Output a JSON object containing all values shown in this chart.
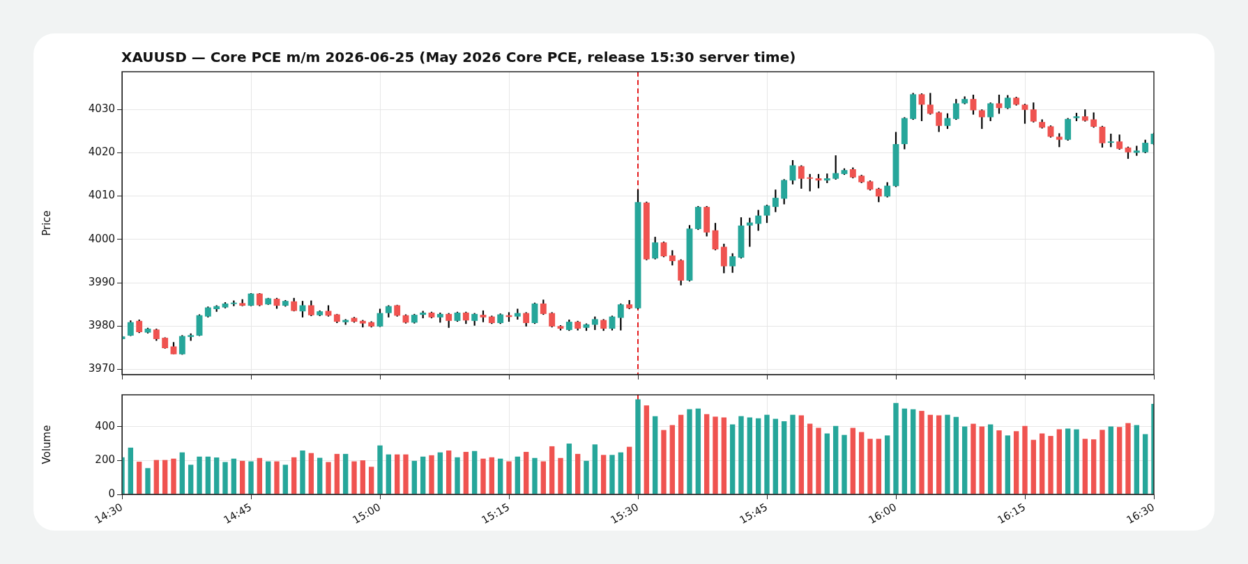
{
  "chart_data": [
    {
      "type": "candlestick",
      "title": "XAUUSD — Core PCE m/m 2026-06-25 (May 2026 Core PCE, release 15:30 server time)",
      "ylabel": "Price",
      "categories": [
        "14:30",
        null,
        null,
        null,
        null,
        null,
        null,
        null,
        null,
        null,
        null,
        null,
        null,
        null,
        null,
        "14:45",
        null,
        null,
        null,
        null,
        null,
        null,
        null,
        null,
        null,
        null,
        null,
        null,
        null,
        null,
        "15:00",
        null,
        null,
        null,
        null,
        null,
        null,
        null,
        null,
        null,
        null,
        null,
        null,
        null,
        null,
        "15:15",
        null,
        null,
        null,
        null,
        null,
        null,
        null,
        null,
        null,
        null,
        null,
        null,
        null,
        null,
        "15:30",
        null,
        null,
        null,
        null,
        null,
        null,
        null,
        null,
        null,
        null,
        null,
        null,
        null,
        null,
        "15:45",
        null,
        null,
        null,
        null,
        null,
        null,
        null,
        null,
        null,
        null,
        null,
        null,
        null,
        null,
        "16:00",
        null,
        null,
        null,
        null,
        null,
        null,
        null,
        null,
        null,
        null,
        null,
        null,
        null,
        null,
        "16:15",
        null,
        null,
        null,
        null,
        null,
        null,
        null,
        null,
        null,
        null,
        null,
        null,
        null,
        null,
        "16:30"
      ],
      "ohlc": [
        [
          3977.0,
          3977.8,
          3976.9,
          3977.6
        ],
        [
          3977.8,
          3981.3,
          3977.7,
          3980.9
        ],
        [
          3981.2,
          3981.5,
          3978.4,
          3978.6
        ],
        [
          3978.5,
          3979.6,
          3978.3,
          3979.4
        ],
        [
          3979.2,
          3979.4,
          3976.6,
          3977.0
        ],
        [
          3977.3,
          3977.4,
          3974.8,
          3974.9
        ],
        [
          3975.3,
          3976.3,
          3973.5,
          3973.5
        ],
        [
          3973.5,
          3977.9,
          3973.4,
          3977.7
        ],
        [
          3977.5,
          3978.3,
          3976.6,
          3977.9
        ],
        [
          3977.8,
          3982.7,
          3977.7,
          3982.5
        ],
        [
          3982.2,
          3984.5,
          3982.0,
          3984.3
        ],
        [
          3983.9,
          3984.8,
          3983.3,
          3984.6
        ],
        [
          3984.3,
          3985.5,
          3984.1,
          3985.2
        ],
        [
          3985.1,
          3985.9,
          3984.6,
          3985.4
        ],
        [
          3985.3,
          3986.2,
          3984.6,
          3984.7
        ],
        [
          3984.7,
          3987.6,
          3984.6,
          3987.5
        ],
        [
          3987.5,
          3987.6,
          3984.6,
          3984.8
        ],
        [
          3985.0,
          3986.5,
          3984.9,
          3986.4
        ],
        [
          3986.3,
          3986.5,
          3984.0,
          3984.7
        ],
        [
          3984.7,
          3986.0,
          3984.5,
          3985.8
        ],
        [
          3985.7,
          3986.5,
          3983.4,
          3983.5
        ],
        [
          3983.4,
          3985.8,
          3982.0,
          3984.8
        ],
        [
          3984.8,
          3985.9,
          3982.3,
          3982.5
        ],
        [
          3982.5,
          3983.6,
          3982.3,
          3983.4
        ],
        [
          3983.5,
          3984.8,
          3982.2,
          3982.4
        ],
        [
          3982.7,
          3982.8,
          3980.7,
          3981.0
        ],
        [
          3980.9,
          3981.6,
          3980.3,
          3981.4
        ],
        [
          3981.9,
          3982.1,
          3980.8,
          3981.0
        ],
        [
          3981.2,
          3981.4,
          3979.7,
          3980.6
        ],
        [
          3980.9,
          3981.1,
          3979.7,
          3979.9
        ],
        [
          3979.9,
          3984.0,
          3979.8,
          3983.0
        ],
        [
          3983.0,
          3984.8,
          3982.0,
          3984.6
        ],
        [
          3984.8,
          3984.9,
          3982.2,
          3982.4
        ],
        [
          3982.5,
          3982.7,
          3980.6,
          3980.8
        ],
        [
          3980.8,
          3982.8,
          3980.6,
          3982.6
        ],
        [
          3982.6,
          3983.5,
          3981.8,
          3983.1
        ],
        [
          3983.1,
          3983.3,
          3981.8,
          3982.0
        ],
        [
          3982.0,
          3983.1,
          3980.8,
          3982.8
        ],
        [
          3982.8,
          3983.0,
          3979.6,
          3981.2
        ],
        [
          3981.2,
          3983.3,
          3981.0,
          3983.1
        ],
        [
          3983.1,
          3983.3,
          3980.5,
          3981.3
        ],
        [
          3981.2,
          3983.0,
          3980.1,
          3982.8
        ],
        [
          3982.6,
          3983.6,
          3980.9,
          3982.0
        ],
        [
          3982.2,
          3982.4,
          3980.5,
          3980.7
        ],
        [
          3980.7,
          3982.9,
          3980.5,
          3982.7
        ],
        [
          3982.5,
          3983.2,
          3981.0,
          3982.1
        ],
        [
          3982.2,
          3984.0,
          3981.5,
          3983.0
        ],
        [
          3983.0,
          3983.2,
          3979.9,
          3980.7
        ],
        [
          3980.7,
          3985.4,
          3980.5,
          3985.2
        ],
        [
          3985.2,
          3986.1,
          3982.6,
          3982.8
        ],
        [
          3983.0,
          3983.2,
          3979.7,
          3979.9
        ],
        [
          3980.0,
          3980.2,
          3979.0,
          3979.4
        ],
        [
          3979.1,
          3981.5,
          3978.9,
          3981.0
        ],
        [
          3981.0,
          3981.2,
          3979.0,
          3979.4
        ],
        [
          3979.6,
          3980.6,
          3978.9,
          3980.4
        ],
        [
          3980.3,
          3982.2,
          3979.1,
          3981.6
        ],
        [
          3981.4,
          3981.6,
          3978.9,
          3979.4
        ],
        [
          3979.4,
          3982.4,
          3979.0,
          3982.2
        ],
        [
          3981.9,
          3985.2,
          3979.0,
          3985.0
        ],
        [
          3985.0,
          3986.0,
          3983.9,
          3984.1
        ],
        [
          3984.1,
          4011.5,
          3983.9,
          4008.6
        ],
        [
          4008.5,
          4008.7,
          3995.2,
          3995.4
        ],
        [
          3995.6,
          4000.6,
          3995.4,
          3999.3
        ],
        [
          3999.3,
          3999.5,
          3995.9,
          3996.1
        ],
        [
          3996.3,
          3997.5,
          3994.0,
          3995.0
        ],
        [
          3995.2,
          3995.4,
          3989.4,
          3990.5
        ],
        [
          3990.5,
          4003.3,
          3990.3,
          4002.5
        ],
        [
          4002.4,
          4007.7,
          4002.2,
          4007.5
        ],
        [
          4007.5,
          4007.7,
          4000.7,
          4001.6
        ],
        [
          4002.1,
          4003.8,
          3997.5,
          3997.7
        ],
        [
          3998.3,
          3999.0,
          3992.2,
          3993.8
        ],
        [
          3993.8,
          3996.8,
          3992.3,
          3996.1
        ],
        [
          3995.8,
          4005.1,
          3995.6,
          4003.2
        ],
        [
          4003.2,
          4005.0,
          3998.3,
          4003.9
        ],
        [
          4003.6,
          4006.8,
          4002.0,
          4005.5
        ],
        [
          4005.5,
          4008.0,
          4003.8,
          4007.8
        ],
        [
          4007.5,
          4011.5,
          4006.3,
          4009.6
        ],
        [
          4009.4,
          4013.9,
          4008.1,
          4013.7
        ],
        [
          4013.6,
          4018.3,
          4012.7,
          4017.1
        ],
        [
          4016.9,
          4017.1,
          4011.7,
          4014.0
        ],
        [
          4014.3,
          4015.1,
          4011.1,
          4014.0
        ],
        [
          4014.1,
          4015.1,
          4011.8,
          4013.6
        ],
        [
          4013.6,
          4015.2,
          4013.0,
          4014.1
        ],
        [
          4014.0,
          4019.4,
          4013.8,
          4015.3
        ],
        [
          4015.1,
          4016.4,
          4014.9,
          4016.0
        ],
        [
          4016.2,
          4016.6,
          4014.1,
          4014.3
        ],
        [
          4014.7,
          4014.9,
          4013.0,
          4013.2
        ],
        [
          4013.4,
          4013.6,
          4011.3,
          4011.5
        ],
        [
          4011.7,
          4011.9,
          4008.6,
          4009.9
        ],
        [
          4009.9,
          4013.2,
          4009.7,
          4012.4
        ],
        [
          4012.3,
          4024.8,
          4012.1,
          4022.0
        ],
        [
          4022.0,
          4028.2,
          4020.8,
          4028.0
        ],
        [
          4027.8,
          4033.8,
          4027.6,
          4033.5
        ],
        [
          4033.5,
          4033.7,
          4027.3,
          4031.1
        ],
        [
          4031.1,
          4033.8,
          4028.8,
          4029.0
        ],
        [
          4029.3,
          4029.5,
          4024.8,
          4026.2
        ],
        [
          4026.2,
          4029.1,
          4025.5,
          4028.0
        ],
        [
          4027.8,
          4032.4,
          4027.6,
          4031.4
        ],
        [
          4031.4,
          4033.0,
          4031.2,
          4032.4
        ],
        [
          4032.4,
          4033.4,
          4028.8,
          4029.8
        ],
        [
          4029.8,
          4030.0,
          4025.5,
          4028.2
        ],
        [
          4028.2,
          4031.6,
          4027.3,
          4031.4
        ],
        [
          4031.4,
          4033.4,
          4029.0,
          4030.3
        ],
        [
          4030.3,
          4033.3,
          4030.1,
          4032.7
        ],
        [
          4032.7,
          4032.9,
          4030.9,
          4031.1
        ],
        [
          4031.1,
          4031.3,
          4026.7,
          4029.9
        ],
        [
          4030.0,
          4031.6,
          4027.0,
          4027.2
        ],
        [
          4027.1,
          4027.7,
          4025.6,
          4025.8
        ],
        [
          4026.1,
          4026.3,
          4023.5,
          4023.7
        ],
        [
          4023.7,
          4024.5,
          4021.3,
          4023.0
        ],
        [
          4023.0,
          4028.0,
          4022.8,
          4027.8
        ],
        [
          4028.0,
          4029.2,
          4027.3,
          4028.4
        ],
        [
          4028.4,
          4030.0,
          4027.2,
          4027.4
        ],
        [
          4027.7,
          4029.3,
          4025.8,
          4026.0
        ],
        [
          4026.0,
          4026.2,
          4021.2,
          4022.2
        ],
        [
          4022.3,
          4024.4,
          4021.3,
          4022.6
        ],
        [
          4022.6,
          4024.2,
          4020.7,
          4020.9
        ],
        [
          4021.2,
          4021.4,
          4018.6,
          4020.1
        ],
        [
          4020.0,
          4021.6,
          4019.3,
          4020.5
        ],
        [
          4020.1,
          4023.0,
          4019.9,
          4022.3
        ],
        [
          4022.0,
          4024.6,
          4021.8,
          4024.4
        ]
      ],
      "colors": [
        "#26a69a",
        "#26a69a",
        "#ef5350",
        "#26a69a",
        "#ef5350",
        "#ef5350",
        "#ef5350",
        "#26a69a",
        "#26a69a",
        "#26a69a",
        "#26a69a",
        "#26a69a",
        "#26a69a",
        "#26a69a",
        "#ef5350",
        "#26a69a",
        "#ef5350",
        "#26a69a",
        "#ef5350",
        "#26a69a",
        "#ef5350",
        "#26a69a",
        "#ef5350",
        "#26a69a",
        "#ef5350",
        "#ef5350",
        "#26a69a",
        "#ef5350",
        "#ef5350",
        "#ef5350",
        "#26a69a",
        "#26a69a",
        "#ef5350",
        "#ef5350",
        "#26a69a",
        "#26a69a",
        "#ef5350",
        "#26a69a",
        "#ef5350",
        "#26a69a",
        "#ef5350",
        "#26a69a",
        "#ef5350",
        "#ef5350",
        "#26a69a",
        "#ef5350",
        "#26a69a",
        "#ef5350",
        "#26a69a",
        "#ef5350",
        "#ef5350",
        "#ef5350",
        "#26a69a",
        "#ef5350",
        "#26a69a",
        "#26a69a",
        "#ef5350",
        "#26a69a",
        "#26a69a",
        "#ef5350",
        "#26a69a",
        "#ef5350",
        "#26a69a",
        "#ef5350",
        "#ef5350",
        "#ef5350",
        "#26a69a",
        "#26a69a",
        "#ef5350",
        "#ef5350",
        "#ef5350",
        "#26a69a",
        "#26a69a",
        "#26a69a",
        "#26a69a",
        "#26a69a",
        "#26a69a",
        "#26a69a",
        "#26a69a",
        "#ef5350",
        "#ef5350",
        "#ef5350",
        "#26a69a",
        "#26a69a",
        "#26a69a",
        "#ef5350",
        "#ef5350",
        "#ef5350",
        "#ef5350",
        "#26a69a",
        "#26a69a",
        "#26a69a",
        "#26a69a",
        "#ef5350",
        "#ef5350",
        "#ef5350",
        "#26a69a",
        "#26a69a",
        "#26a69a",
        "#ef5350",
        "#ef5350",
        "#26a69a",
        "#ef5350",
        "#26a69a",
        "#ef5350",
        "#ef5350",
        "#ef5350",
        "#ef5350",
        "#ef5350",
        "#ef5350",
        "#26a69a",
        "#26a69a",
        "#ef5350",
        "#ef5350",
        "#ef5350",
        "#26a69a",
        "#ef5350",
        "#ef5350",
        "#26a69a",
        "#26a69a",
        "#26a69a"
      ],
      "ylim": [
        3968.8,
        4038.7
      ],
      "yticks": [
        3970,
        3980,
        3990,
        4000,
        4010,
        4020,
        4030
      ],
      "tick_labels": "y",
      "grid": true,
      "legend": false,
      "ref_lines": [
        {
          "axis": "x",
          "value": "15:30",
          "color": "#e41a1c",
          "line_style": "dashed"
        }
      ]
    },
    {
      "type": "bar",
      "ylabel": "Volume",
      "categories": [
        "14:30",
        null,
        null,
        null,
        null,
        null,
        null,
        null,
        null,
        null,
        null,
        null,
        null,
        null,
        null,
        "14:45",
        null,
        null,
        null,
        null,
        null,
        null,
        null,
        null,
        null,
        null,
        null,
        null,
        null,
        null,
        "15:00",
        null,
        null,
        null,
        null,
        null,
        null,
        null,
        null,
        null,
        null,
        null,
        null,
        null,
        null,
        "15:15",
        null,
        null,
        null,
        null,
        null,
        null,
        null,
        null,
        null,
        null,
        null,
        null,
        null,
        null,
        "15:30",
        null,
        null,
        null,
        null,
        null,
        null,
        null,
        null,
        null,
        null,
        null,
        null,
        null,
        null,
        "15:45",
        null,
        null,
        null,
        null,
        null,
        null,
        null,
        null,
        null,
        null,
        null,
        null,
        null,
        null,
        "16:00",
        null,
        null,
        null,
        null,
        null,
        null,
        null,
        null,
        null,
        null,
        null,
        null,
        null,
        null,
        "16:15",
        null,
        null,
        null,
        null,
        null,
        null,
        null,
        null,
        null,
        null,
        null,
        null,
        null,
        null,
        "16:30"
      ],
      "values": [
        219,
        276,
        193,
        155,
        203,
        203,
        211,
        248,
        175,
        223,
        223,
        218,
        191,
        211,
        198,
        195,
        215,
        195,
        195,
        175,
        219,
        259,
        244,
        216,
        191,
        239,
        239,
        195,
        201,
        163,
        289,
        236,
        236,
        236,
        198,
        223,
        231,
        248,
        259,
        219,
        251,
        256,
        211,
        219,
        211,
        195,
        223,
        251,
        215,
        195,
        284,
        215,
        300,
        239,
        198,
        295,
        233,
        233,
        248,
        281,
        561,
        525,
        462,
        380,
        409,
        470,
        503,
        507,
        474,
        459,
        454,
        413,
        462,
        454,
        449,
        470,
        446,
        432,
        470,
        467,
        417,
        393,
        360,
        404,
        351,
        393,
        368,
        328,
        328,
        348,
        540,
        507,
        503,
        493,
        470,
        467,
        470,
        457,
        401,
        417,
        401,
        413,
        378,
        348,
        373,
        404,
        322,
        360,
        345,
        384,
        389,
        384,
        328,
        325,
        381,
        401,
        398,
        421,
        409,
        356,
        535
      ],
      "colors": [
        "#26a69a",
        "#26a69a",
        "#ef5350",
        "#26a69a",
        "#ef5350",
        "#ef5350",
        "#ef5350",
        "#26a69a",
        "#26a69a",
        "#26a69a",
        "#26a69a",
        "#26a69a",
        "#26a69a",
        "#26a69a",
        "#ef5350",
        "#26a69a",
        "#ef5350",
        "#26a69a",
        "#ef5350",
        "#26a69a",
        "#ef5350",
        "#26a69a",
        "#ef5350",
        "#26a69a",
        "#ef5350",
        "#ef5350",
        "#26a69a",
        "#ef5350",
        "#ef5350",
        "#ef5350",
        "#26a69a",
        "#26a69a",
        "#ef5350",
        "#ef5350",
        "#26a69a",
        "#26a69a",
        "#ef5350",
        "#26a69a",
        "#ef5350",
        "#26a69a",
        "#ef5350",
        "#26a69a",
        "#ef5350",
        "#ef5350",
        "#26a69a",
        "#ef5350",
        "#26a69a",
        "#ef5350",
        "#26a69a",
        "#ef5350",
        "#ef5350",
        "#ef5350",
        "#26a69a",
        "#ef5350",
        "#26a69a",
        "#26a69a",
        "#ef5350",
        "#26a69a",
        "#26a69a",
        "#ef5350",
        "#26a69a",
        "#ef5350",
        "#26a69a",
        "#ef5350",
        "#ef5350",
        "#ef5350",
        "#26a69a",
        "#26a69a",
        "#ef5350",
        "#ef5350",
        "#ef5350",
        "#26a69a",
        "#26a69a",
        "#26a69a",
        "#26a69a",
        "#26a69a",
        "#26a69a",
        "#26a69a",
        "#26a69a",
        "#ef5350",
        "#ef5350",
        "#ef5350",
        "#26a69a",
        "#26a69a",
        "#26a69a",
        "#ef5350",
        "#ef5350",
        "#ef5350",
        "#ef5350",
        "#26a69a",
        "#26a69a",
        "#26a69a",
        "#26a69a",
        "#ef5350",
        "#ef5350",
        "#ef5350",
        "#26a69a",
        "#26a69a",
        "#26a69a",
        "#ef5350",
        "#ef5350",
        "#26a69a",
        "#ef5350",
        "#26a69a",
        "#ef5350",
        "#ef5350",
        "#ef5350",
        "#ef5350",
        "#ef5350",
        "#ef5350",
        "#26a69a",
        "#26a69a",
        "#ef5350",
        "#ef5350",
        "#ef5350",
        "#26a69a",
        "#ef5350",
        "#ef5350",
        "#26a69a",
        "#26a69a",
        "#26a69a"
      ],
      "ylim": [
        0,
        588
      ],
      "yticks": [
        0,
        200,
        400
      ],
      "grid": true,
      "legend": false,
      "ref_lines": [
        {
          "axis": "x",
          "value": "15:30",
          "color": "#e41a1c",
          "line_style": "dashed"
        }
      ]
    }
  ]
}
